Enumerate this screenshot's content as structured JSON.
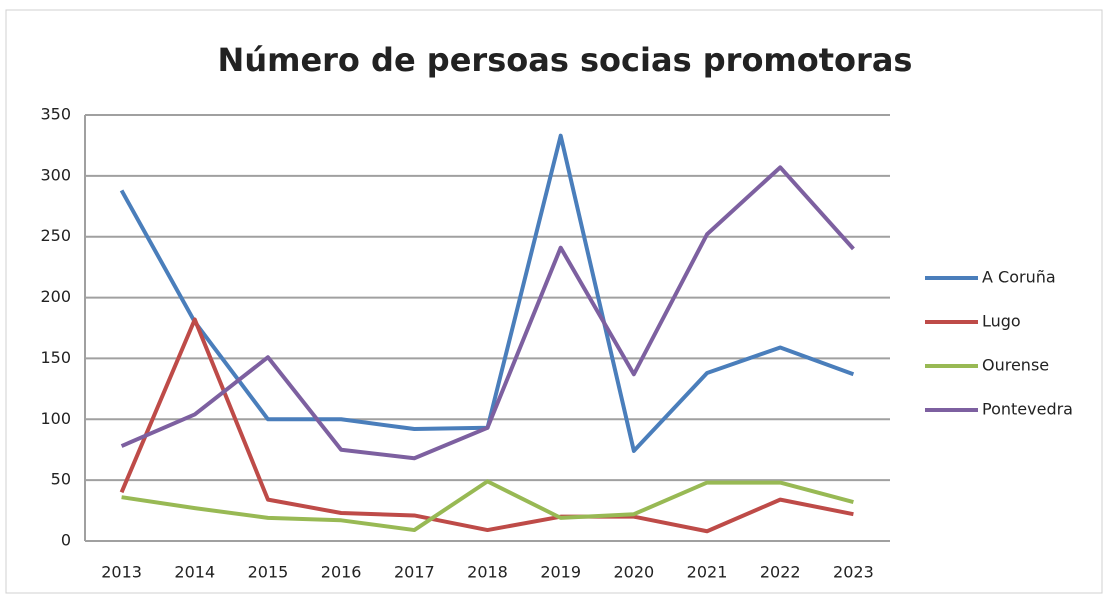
{
  "chart_data": {
    "type": "line",
    "title": "Número de persoas socias promotoras",
    "categories": [
      "2013",
      "2014",
      "2015",
      "2016",
      "2017",
      "2018",
      "2019",
      "2020",
      "2021",
      "2022",
      "2023"
    ],
    "series": [
      {
        "name": "A Coruña",
        "color": "#4a7ebb",
        "values": [
          288,
          180,
          100,
          100,
          92,
          93,
          333,
          74,
          138,
          159,
          137
        ]
      },
      {
        "name": "Lugo",
        "color": "#be4b48",
        "values": [
          40,
          182,
          34,
          23,
          21,
          9,
          20,
          20,
          8,
          34,
          22
        ]
      },
      {
        "name": "Ourense",
        "color": "#98b954",
        "values": [
          36,
          27,
          19,
          17,
          9,
          49,
          19,
          22,
          48,
          48,
          32
        ]
      },
      {
        "name": "Pontevedra",
        "color": "#7d60a0",
        "values": [
          78,
          104,
          151,
          75,
          68,
          93,
          241,
          137,
          252,
          307,
          240
        ]
      }
    ],
    "ylim": [
      0,
      350
    ],
    "yticks": [
      0,
      50,
      100,
      150,
      200,
      250,
      300,
      350
    ],
    "grid": true,
    "legend": "right"
  }
}
